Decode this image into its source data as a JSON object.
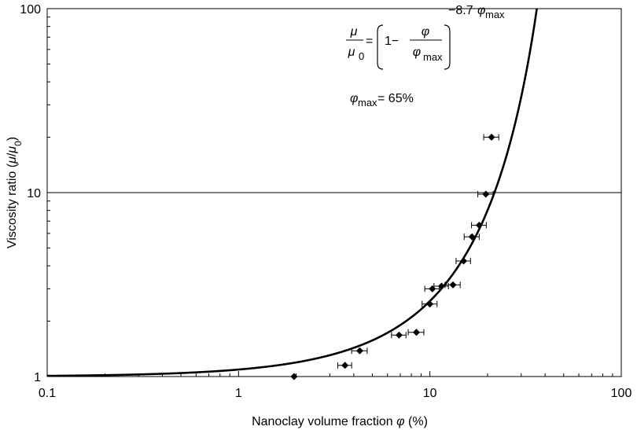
{
  "chart_data": {
    "type": "scatter",
    "xlabel_main": "Nanoclay volume fraction ",
    "xlabel_symbol": "φ",
    "xlabel_unit": " (%)",
    "ylabel_main": "Viscosity ratio (",
    "ylabel_mu": "μ",
    "ylabel_slash": "/",
    "ylabel_mu0": "μ",
    "ylabel_sub0": "0",
    "ylabel_close": ")",
    "x_scale": "log",
    "y_scale": "log",
    "xlim": [
      0.1,
      100
    ],
    "ylim": [
      1,
      100
    ],
    "x_ticks": [
      0.1,
      1,
      10,
      100
    ],
    "x_tick_labels": [
      "0.1",
      "1",
      "10",
      "100"
    ],
    "y_ticks": [
      1,
      10,
      100
    ],
    "y_tick_labels": [
      "1",
      "10",
      "100"
    ],
    "grid": "horizontal line at y = 10",
    "points": [
      {
        "x": 1.95,
        "y": 1.0,
        "xerr": 0.0
      },
      {
        "x": 3.6,
        "y": 1.15,
        "xerr": 0.3
      },
      {
        "x": 4.3,
        "y": 1.38,
        "xerr": 0.4
      },
      {
        "x": 6.9,
        "y": 1.68,
        "xerr": 0.6
      },
      {
        "x": 8.5,
        "y": 1.74,
        "xerr": 0.8
      },
      {
        "x": 10.0,
        "y": 2.48,
        "xerr": 0.9
      },
      {
        "x": 10.3,
        "y": 3.0,
        "xerr": 0.9
      },
      {
        "x": 11.5,
        "y": 3.1,
        "xerr": 1.0
      },
      {
        "x": 13.2,
        "y": 3.15,
        "xerr": 1.2
      },
      {
        "x": 15.0,
        "y": 4.25,
        "xerr": 1.3
      },
      {
        "x": 16.6,
        "y": 5.75,
        "xerr": 1.5
      },
      {
        "x": 18.1,
        "y": 6.65,
        "xerr": 1.6
      },
      {
        "x": 19.6,
        "y": 9.8,
        "xerr": 1.8
      },
      {
        "x": 21.0,
        "y": 20.0,
        "xerr": 1.9
      }
    ],
    "curve": {
      "phi_max_percent": 65,
      "coefficient": 8.7
    },
    "equation": {
      "lhs_num": "μ",
      "lhs_den": "μ",
      "lhs_den_sub": "0",
      "equals": "=",
      "one_minus": "1−",
      "frac_num": "φ",
      "frac_den": "φ",
      "frac_den_sub": "max",
      "exp_coeff": "−8.7",
      "exp_symbol": "φ",
      "exp_sub": "max"
    },
    "phimax_label": {
      "symbol": "φ",
      "sub": "max",
      "rest": "= 65%"
    },
    "colors": {
      "marker": "#000000",
      "curve": "#000000",
      "axis": "#000000"
    }
  }
}
